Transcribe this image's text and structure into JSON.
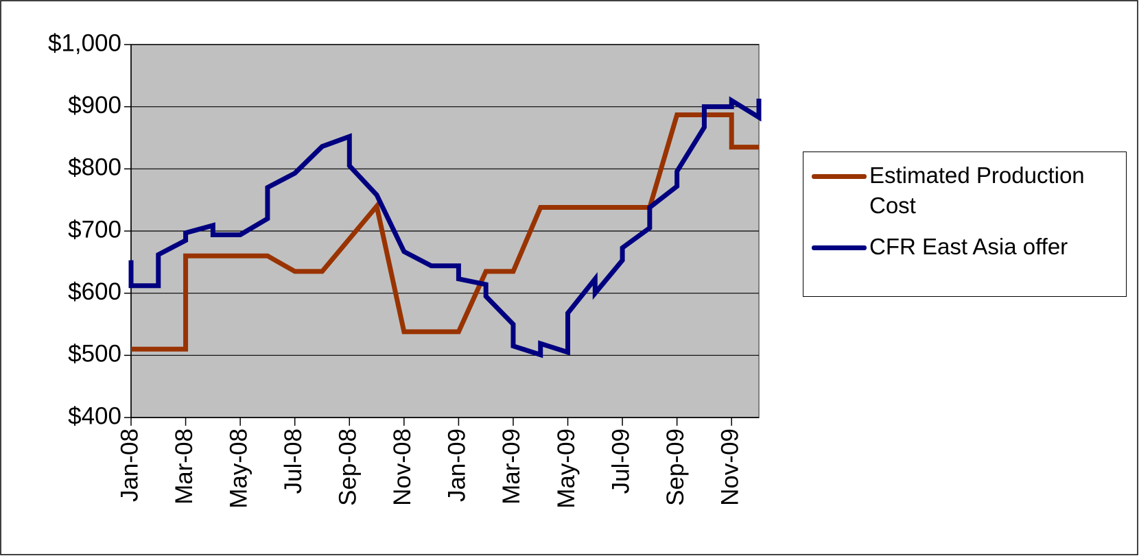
{
  "chart_data": {
    "type": "line",
    "xlim": [
      0,
      23
    ],
    "xticks": [
      {
        "value": 0,
        "label": "Jan-08"
      },
      {
        "value": 2,
        "label": "Mar-08"
      },
      {
        "value": 4,
        "label": "May-08"
      },
      {
        "value": 6,
        "label": "Jul-08"
      },
      {
        "value": 8,
        "label": "Sep-08"
      },
      {
        "value": 10,
        "label": "Nov-08"
      },
      {
        "value": 12,
        "label": "Jan-09"
      },
      {
        "value": 14,
        "label": "Mar-09"
      },
      {
        "value": 16,
        "label": "May-09"
      },
      {
        "value": 18,
        "label": "Jul-09"
      },
      {
        "value": 20,
        "label": "Sep-09"
      },
      {
        "value": 22,
        "label": "Nov-09"
      }
    ],
    "ylim": [
      400,
      1000
    ],
    "yticks": [
      {
        "value": 400,
        "label": "$400"
      },
      {
        "value": 500,
        "label": "$500"
      },
      {
        "value": 600,
        "label": "$600"
      },
      {
        "value": 700,
        "label": "$700"
      },
      {
        "value": 800,
        "label": "$800"
      },
      {
        "value": 900,
        "label": "$900"
      },
      {
        "value": 1000,
        "label": "$1,000"
      }
    ],
    "grid": true,
    "legend": "right",
    "series": [
      {
        "name": "Estimated Production Cost",
        "color": "#993300",
        "x": [
          0,
          2,
          2,
          5,
          6,
          7,
          9,
          10,
          12,
          13,
          14,
          15,
          19,
          20,
          22,
          22,
          23
        ],
        "values": [
          510,
          510,
          660,
          660,
          635,
          635,
          740,
          538,
          538,
          635,
          635,
          738,
          738,
          887,
          887,
          835,
          835
        ]
      },
      {
        "name": "CFR East Asia offer",
        "color": "#000080",
        "x": [
          0,
          0,
          1,
          1,
          2,
          2,
          3,
          3,
          4,
          5,
          5,
          6,
          7,
          8,
          8,
          9,
          10,
          11,
          12,
          12,
          13,
          13,
          14,
          14,
          15,
          15,
          16,
          16,
          17,
          17,
          18,
          18,
          19,
          19,
          20,
          20,
          21,
          21,
          22,
          22,
          23,
          23
        ],
        "values": [
          653,
          612,
          612,
          662,
          685,
          697,
          709,
          694,
          694,
          720,
          770,
          793,
          836,
          852,
          805,
          758,
          667,
          644,
          644,
          623,
          614,
          595,
          550,
          515,
          501,
          519,
          505,
          568,
          623,
          600,
          653,
          673,
          705,
          738,
          772,
          796,
          867,
          900,
          900,
          910,
          883,
          913
        ]
      }
    ]
  }
}
